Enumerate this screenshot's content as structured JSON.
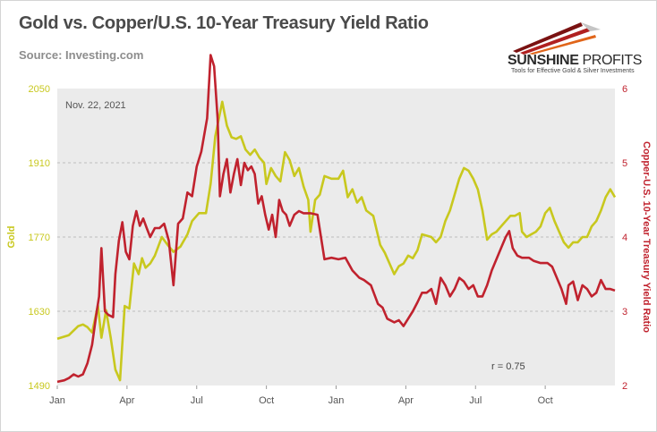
{
  "header": {
    "title": "Gold vs. Copper/U.S. 10-Year Treasury Yield Ratio",
    "source": "Source: Investing.com"
  },
  "logo": {
    "name_part1": "SUNSHINE",
    "name_part2": " PROFITS",
    "tagline": "Tools for Effective Gold & Silver Investments"
  },
  "colors": {
    "gold": "#c8c81e",
    "ratio": "#c0222e",
    "plot_bg": "#ebebeb",
    "grid": "#bdbdbd"
  },
  "chart_data": {
    "type": "line",
    "annotation_date": "Nov. 22, 2021",
    "correlation": "r = 0.75",
    "x_ticks": [
      "Jan",
      "Apr",
      "Jul",
      "Oct",
      "Jan",
      "Apr",
      "Jul",
      "Oct"
    ],
    "x_range": [
      0,
      24
    ],
    "y_left": {
      "label": "Gold",
      "ticks": [
        "1490",
        "1630",
        "1770",
        "1910",
        "2050"
      ],
      "range": [
        1490,
        2050
      ]
    },
    "y_right": {
      "label": "Copper-U.S. 10-Year Treasury Yield Ratio",
      "ticks": [
        "2",
        "3",
        "4",
        "5",
        "6"
      ],
      "range": [
        2,
        6
      ]
    },
    "series": [
      {
        "name": "Gold",
        "points": [
          [
            0,
            1578
          ],
          [
            0.5,
            1585
          ],
          [
            0.9,
            1602
          ],
          [
            1.1,
            1605
          ],
          [
            1.3,
            1600
          ],
          [
            1.5,
            1590
          ],
          [
            1.75,
            1641
          ],
          [
            1.9,
            1580
          ],
          [
            2.1,
            1632
          ],
          [
            2.3,
            1580
          ],
          [
            2.5,
            1520
          ],
          [
            2.7,
            1500
          ],
          [
            2.9,
            1640
          ],
          [
            3.1,
            1635
          ],
          [
            3.3,
            1720
          ],
          [
            3.5,
            1700
          ],
          [
            3.65,
            1730
          ],
          [
            3.8,
            1712
          ],
          [
            4,
            1720
          ],
          [
            4.2,
            1735
          ],
          [
            4.5,
            1770
          ],
          [
            4.75,
            1755
          ],
          [
            5,
            1742
          ],
          [
            5.3,
            1752
          ],
          [
            5.6,
            1775
          ],
          [
            5.8,
            1800
          ],
          [
            6.1,
            1815
          ],
          [
            6.4,
            1815
          ],
          [
            6.6,
            1870
          ],
          [
            6.8,
            1960
          ],
          [
            7.1,
            2025
          ],
          [
            7.3,
            1980
          ],
          [
            7.5,
            1958
          ],
          [
            7.7,
            1955
          ],
          [
            7.9,
            1960
          ],
          [
            8.1,
            1935
          ],
          [
            8.3,
            1925
          ],
          [
            8.5,
            1935
          ],
          [
            8.7,
            1920
          ],
          [
            8.9,
            1910
          ],
          [
            9.0,
            1870
          ],
          [
            9.2,
            1900
          ],
          [
            9.4,
            1885
          ],
          [
            9.6,
            1875
          ],
          [
            9.8,
            1930
          ],
          [
            10.0,
            1915
          ],
          [
            10.2,
            1885
          ],
          [
            10.4,
            1900
          ],
          [
            10.6,
            1865
          ],
          [
            10.8,
            1840
          ],
          [
            10.9,
            1780
          ],
          [
            11.1,
            1840
          ],
          [
            11.3,
            1850
          ],
          [
            11.5,
            1885
          ],
          [
            11.8,
            1880
          ],
          [
            12.1,
            1880
          ],
          [
            12.3,
            1895
          ],
          [
            12.5,
            1845
          ],
          [
            12.7,
            1860
          ],
          [
            12.9,
            1835
          ],
          [
            13.1,
            1845
          ],
          [
            13.3,
            1820
          ],
          [
            13.6,
            1810
          ],
          [
            13.9,
            1755
          ],
          [
            14.1,
            1740
          ],
          [
            14.3,
            1720
          ],
          [
            14.5,
            1700
          ],
          [
            14.7,
            1715
          ],
          [
            14.9,
            1720
          ],
          [
            15.1,
            1735
          ],
          [
            15.3,
            1730
          ],
          [
            15.5,
            1745
          ],
          [
            15.7,
            1775
          ],
          [
            16.1,
            1770
          ],
          [
            16.3,
            1760
          ],
          [
            16.5,
            1770
          ],
          [
            16.7,
            1800
          ],
          [
            16.9,
            1820
          ],
          [
            17.1,
            1850
          ],
          [
            17.3,
            1880
          ],
          [
            17.5,
            1900
          ],
          [
            17.7,
            1895
          ],
          [
            17.9,
            1880
          ],
          [
            18.1,
            1860
          ],
          [
            18.3,
            1820
          ],
          [
            18.5,
            1765
          ],
          [
            18.7,
            1775
          ],
          [
            18.9,
            1780
          ],
          [
            19.1,
            1790
          ],
          [
            19.3,
            1800
          ],
          [
            19.5,
            1810
          ],
          [
            19.7,
            1810
          ],
          [
            19.9,
            1815
          ],
          [
            20.0,
            1780
          ],
          [
            20.2,
            1770
          ],
          [
            20.4,
            1775
          ],
          [
            20.6,
            1780
          ],
          [
            20.8,
            1790
          ],
          [
            21.0,
            1815
          ],
          [
            21.2,
            1825
          ],
          [
            21.4,
            1800
          ],
          [
            21.6,
            1780
          ],
          [
            21.8,
            1760
          ],
          [
            22.0,
            1750
          ],
          [
            22.2,
            1760
          ],
          [
            22.4,
            1760
          ],
          [
            22.6,
            1770
          ],
          [
            22.8,
            1770
          ],
          [
            23.0,
            1790
          ],
          [
            23.2,
            1800
          ],
          [
            23.4,
            1820
          ],
          [
            23.6,
            1845
          ],
          [
            23.8,
            1860
          ],
          [
            24.0,
            1845
          ]
        ]
      },
      {
        "name": "Copper-U.S. 10-Year Treasury Yield Ratio",
        "points": [
          [
            0,
            2.05
          ],
          [
            0.3,
            2.07
          ],
          [
            0.5,
            2.1
          ],
          [
            0.7,
            2.15
          ],
          [
            0.9,
            2.12
          ],
          [
            1.1,
            2.15
          ],
          [
            1.3,
            2.3
          ],
          [
            1.5,
            2.55
          ],
          [
            1.7,
            3.0
          ],
          [
            1.8,
            3.2
          ],
          [
            1.9,
            3.85
          ],
          [
            2.05,
            3.0
          ],
          [
            2.2,
            2.95
          ],
          [
            2.4,
            2.92
          ],
          [
            2.5,
            3.5
          ],
          [
            2.65,
            3.95
          ],
          [
            2.8,
            4.2
          ],
          [
            2.95,
            3.8
          ],
          [
            3.1,
            3.7
          ],
          [
            3.25,
            4.15
          ],
          [
            3.4,
            4.35
          ],
          [
            3.55,
            4.15
          ],
          [
            3.7,
            4.25
          ],
          [
            3.85,
            4.12
          ],
          [
            4.0,
            4.0
          ],
          [
            4.2,
            4.12
          ],
          [
            4.4,
            4.12
          ],
          [
            4.6,
            4.18
          ],
          [
            4.8,
            3.95
          ],
          [
            5.0,
            3.35
          ],
          [
            5.2,
            4.18
          ],
          [
            5.4,
            4.25
          ],
          [
            5.6,
            4.6
          ],
          [
            5.8,
            4.55
          ],
          [
            6.0,
            4.95
          ],
          [
            6.2,
            5.15
          ],
          [
            6.45,
            5.6
          ],
          [
            6.6,
            6.45
          ],
          [
            6.75,
            6.3
          ],
          [
            6.9,
            5.6
          ],
          [
            7.0,
            4.55
          ],
          [
            7.15,
            4.85
          ],
          [
            7.3,
            5.05
          ],
          [
            7.45,
            4.6
          ],
          [
            7.6,
            4.85
          ],
          [
            7.75,
            5.05
          ],
          [
            7.9,
            4.7
          ],
          [
            8.05,
            5.0
          ],
          [
            8.2,
            4.9
          ],
          [
            8.35,
            4.95
          ],
          [
            8.5,
            4.85
          ],
          [
            8.65,
            4.45
          ],
          [
            8.8,
            4.55
          ],
          [
            8.95,
            4.3
          ],
          [
            9.1,
            4.1
          ],
          [
            9.25,
            4.3
          ],
          [
            9.4,
            4.0
          ],
          [
            9.55,
            4.5
          ],
          [
            9.7,
            4.35
          ],
          [
            9.85,
            4.3
          ],
          [
            10.0,
            4.15
          ],
          [
            10.2,
            4.3
          ],
          [
            10.4,
            4.35
          ],
          [
            10.6,
            4.32
          ],
          [
            10.9,
            4.32
          ],
          [
            11.2,
            4.3
          ],
          [
            11.5,
            3.7
          ],
          [
            11.8,
            3.72
          ],
          [
            12.1,
            3.7
          ],
          [
            12.4,
            3.72
          ],
          [
            12.7,
            3.55
          ],
          [
            13.0,
            3.45
          ],
          [
            13.2,
            3.42
          ],
          [
            13.5,
            3.35
          ],
          [
            13.8,
            3.1
          ],
          [
            14.0,
            3.05
          ],
          [
            14.2,
            2.9
          ],
          [
            14.5,
            2.85
          ],
          [
            14.7,
            2.88
          ],
          [
            14.9,
            2.8
          ],
          [
            15.1,
            2.9
          ],
          [
            15.3,
            3.0
          ],
          [
            15.5,
            3.12
          ],
          [
            15.7,
            3.25
          ],
          [
            15.9,
            3.25
          ],
          [
            16.1,
            3.3
          ],
          [
            16.3,
            3.1
          ],
          [
            16.5,
            3.45
          ],
          [
            16.7,
            3.35
          ],
          [
            16.9,
            3.2
          ],
          [
            17.1,
            3.3
          ],
          [
            17.3,
            3.45
          ],
          [
            17.5,
            3.4
          ],
          [
            17.7,
            3.3
          ],
          [
            17.9,
            3.35
          ],
          [
            18.1,
            3.2
          ],
          [
            18.3,
            3.2
          ],
          [
            18.5,
            3.35
          ],
          [
            18.7,
            3.55
          ],
          [
            18.9,
            3.7
          ],
          [
            19.1,
            3.85
          ],
          [
            19.3,
            4.0
          ],
          [
            19.45,
            4.08
          ],
          [
            19.6,
            3.85
          ],
          [
            19.8,
            3.75
          ],
          [
            20.0,
            3.72
          ],
          [
            20.3,
            3.72
          ],
          [
            20.5,
            3.68
          ],
          [
            20.8,
            3.65
          ],
          [
            21.1,
            3.65
          ],
          [
            21.3,
            3.6
          ],
          [
            21.5,
            3.45
          ],
          [
            21.7,
            3.3
          ],
          [
            21.9,
            3.1
          ],
          [
            22.0,
            3.35
          ],
          [
            22.2,
            3.4
          ],
          [
            22.4,
            3.15
          ],
          [
            22.6,
            3.35
          ],
          [
            22.8,
            3.3
          ],
          [
            23.0,
            3.2
          ],
          [
            23.2,
            3.25
          ],
          [
            23.4,
            3.42
          ],
          [
            23.6,
            3.3
          ],
          [
            23.8,
            3.3
          ],
          [
            24.0,
            3.28
          ]
        ]
      }
    ]
  }
}
